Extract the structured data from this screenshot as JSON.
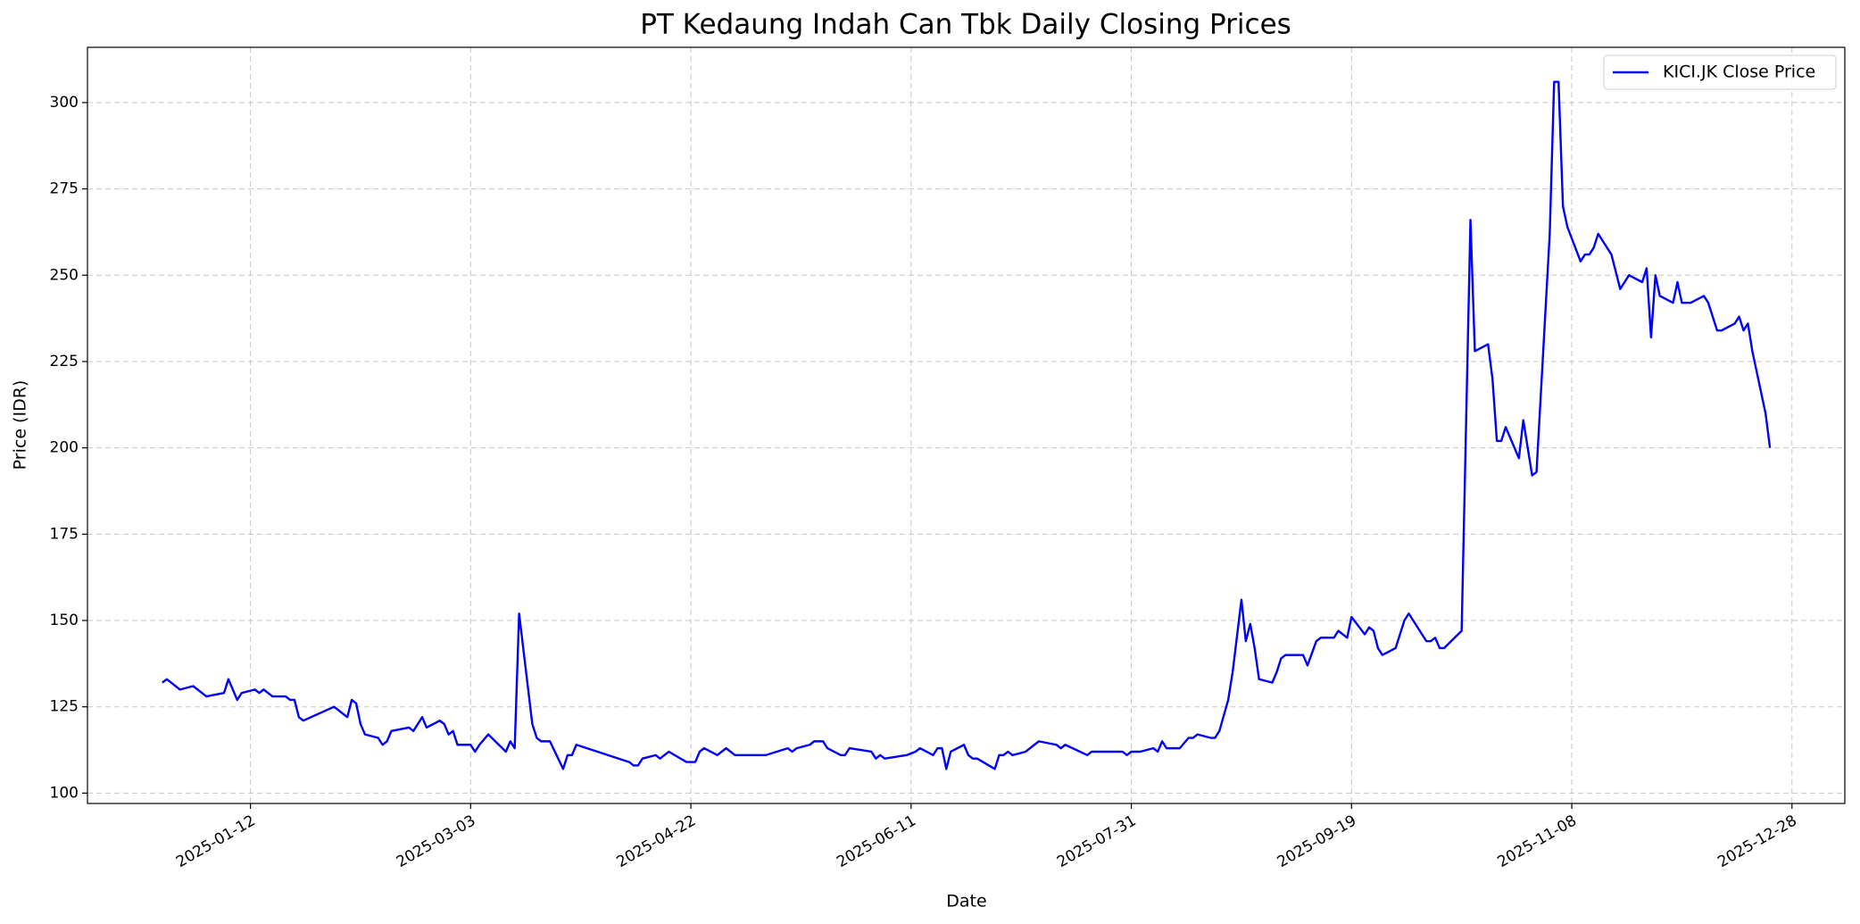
{
  "chart_data": {
    "type": "line",
    "title": "PT Kedaung Indah Can Tbk Daily Closing Prices",
    "x_label": "Date",
    "y_label": "Price (IDR)",
    "x": [
      "2024-12-23",
      "2024-12-24",
      "2024-12-27",
      "2024-12-30",
      "2025-01-02",
      "2025-01-06",
      "2025-01-07",
      "2025-01-09",
      "2025-01-10",
      "2025-01-13",
      "2025-01-14",
      "2025-01-15",
      "2025-01-17",
      "2025-01-20",
      "2025-01-21",
      "2025-01-22",
      "2025-01-23",
      "2025-01-24",
      "2025-01-31",
      "2025-02-03",
      "2025-02-04",
      "2025-02-05",
      "2025-02-06",
      "2025-02-07",
      "2025-02-10",
      "2025-02-11",
      "2025-02-12",
      "2025-02-13",
      "2025-02-17",
      "2025-02-18",
      "2025-02-20",
      "2025-02-21",
      "2025-02-24",
      "2025-02-25",
      "2025-02-26",
      "2025-02-27",
      "2025-02-28",
      "2025-03-03",
      "2025-03-04",
      "2025-03-05",
      "2025-03-07",
      "2025-03-11",
      "2025-03-12",
      "2025-03-13",
      "2025-03-14",
      "2025-03-17",
      "2025-03-18",
      "2025-03-19",
      "2025-03-21",
      "2025-03-24",
      "2025-03-25",
      "2025-03-26",
      "2025-03-27",
      "2025-04-08",
      "2025-04-09",
      "2025-04-10",
      "2025-04-11",
      "2025-04-14",
      "2025-04-15",
      "2025-04-17",
      "2025-04-21",
      "2025-04-23",
      "2025-04-24",
      "2025-04-25",
      "2025-04-28",
      "2025-04-30",
      "2025-05-02",
      "2025-05-09",
      "2025-05-14",
      "2025-05-15",
      "2025-05-16",
      "2025-05-19",
      "2025-05-20",
      "2025-05-22",
      "2025-05-23",
      "2025-05-26",
      "2025-05-27",
      "2025-05-28",
      "2025-06-02",
      "2025-06-03",
      "2025-06-04",
      "2025-06-05",
      "2025-06-10",
      "2025-06-12",
      "2025-06-13",
      "2025-06-16",
      "2025-06-17",
      "2025-06-18",
      "2025-06-19",
      "2025-06-20",
      "2025-06-23",
      "2025-06-24",
      "2025-06-25",
      "2025-06-26",
      "2025-06-30",
      "2025-07-01",
      "2025-07-02",
      "2025-07-03",
      "2025-07-04",
      "2025-07-07",
      "2025-07-10",
      "2025-07-14",
      "2025-07-15",
      "2025-07-16",
      "2025-07-21",
      "2025-07-22",
      "2025-07-29",
      "2025-07-30",
      "2025-07-31",
      "2025-08-02",
      "2025-08-05",
      "2025-08-06",
      "2025-08-07",
      "2025-08-08",
      "2025-08-11",
      "2025-08-13",
      "2025-08-14",
      "2025-08-15",
      "2025-08-18",
      "2025-08-19",
      "2025-08-20",
      "2025-08-22",
      "2025-08-23",
      "2025-08-25",
      "2025-08-26",
      "2025-08-27",
      "2025-08-28",
      "2025-08-29",
      "2025-09-01",
      "2025-09-02",
      "2025-09-03",
      "2025-09-04",
      "2025-09-08",
      "2025-09-09",
      "2025-09-11",
      "2025-09-12",
      "2025-09-15",
      "2025-09-16",
      "2025-09-18",
      "2025-09-19",
      "2025-09-22",
      "2025-09-23",
      "2025-09-24",
      "2025-09-25",
      "2025-09-26",
      "2025-09-29",
      "2025-09-30",
      "2025-10-01",
      "2025-10-02",
      "2025-10-06",
      "2025-10-07",
      "2025-10-08",
      "2025-10-09",
      "2025-10-10",
      "2025-10-14",
      "2025-10-16",
      "2025-10-17",
      "2025-10-20",
      "2025-10-21",
      "2025-10-22",
      "2025-10-23",
      "2025-10-24",
      "2025-10-27",
      "2025-10-28",
      "2025-10-30",
      "2025-10-31",
      "2025-11-03",
      "2025-11-04",
      "2025-11-05",
      "2025-11-06",
      "2025-11-07",
      "2025-11-10",
      "2025-11-11",
      "2025-11-12",
      "2025-11-13",
      "2025-11-14",
      "2025-11-17",
      "2025-11-19",
      "2025-11-21",
      "2025-11-24",
      "2025-11-25",
      "2025-11-26",
      "2025-11-27",
      "2025-11-28",
      "2025-12-01",
      "2025-12-02",
      "2025-12-03",
      "2025-12-05",
      "2025-12-08",
      "2025-12-09",
      "2025-12-11",
      "2025-12-12",
      "2025-12-15",
      "2025-12-16",
      "2025-12-17",
      "2025-12-18",
      "2025-12-19",
      "2025-12-22",
      "2025-12-23"
    ],
    "series": [
      {
        "name": "KICI.JK Close Price",
        "color": "#0000ff",
        "values": [
          132,
          133,
          130,
          131,
          128,
          129,
          133,
          127,
          129,
          130,
          129,
          130,
          128,
          128,
          127,
          127,
          122,
          121,
          125,
          122,
          127,
          126,
          120,
          117,
          116,
          114,
          115,
          118,
          119,
          118,
          122,
          119,
          121,
          120,
          117,
          118,
          114,
          114,
          112,
          114,
          117,
          112,
          115,
          113,
          152,
          120,
          116,
          115,
          115,
          107,
          111,
          111,
          114,
          109,
          108,
          108,
          110,
          111,
          110,
          112,
          109,
          109,
          112,
          113,
          111,
          113,
          111,
          111,
          113,
          112,
          113,
          114,
          115,
          115,
          113,
          111,
          111,
          113,
          112,
          110,
          111,
          110,
          111,
          112,
          113,
          111,
          113,
          113,
          107,
          112,
          114,
          111,
          110,
          110,
          107,
          111,
          111,
          112,
          111,
          112,
          115,
          114,
          113,
          114,
          111,
          112,
          112,
          111,
          112,
          112,
          113,
          112,
          115,
          113,
          113,
          116,
          116,
          117,
          116,
          116,
          118,
          127,
          135,
          156,
          144,
          149,
          142,
          133,
          132,
          135,
          139,
          140,
          140,
          137,
          144,
          145,
          145,
          147,
          145,
          151,
          146,
          148,
          147,
          142,
          140,
          142,
          146,
          150,
          152,
          144,
          144,
          145,
          142,
          142,
          147,
          266,
          228,
          230,
          220,
          202,
          202,
          206,
          197,
          208,
          192,
          193,
          262,
          306,
          306,
          270,
          264,
          254,
          256,
          256,
          258,
          262,
          256,
          246,
          250,
          248,
          252,
          232,
          250,
          244,
          242,
          248,
          242,
          242,
          244,
          242,
          234,
          234,
          236,
          238,
          234,
          236,
          228,
          210,
          200
        ]
      }
    ],
    "xlim": [
      "2024-12-06",
      "2026-01-09"
    ],
    "xticks": [
      "2025-01-12",
      "2025-03-03",
      "2025-04-22",
      "2025-06-11",
      "2025-07-31",
      "2025-09-19",
      "2025-11-08",
      "2025-12-28"
    ],
    "ylim": [
      97,
      316
    ],
    "yticks": [
      100,
      125,
      150,
      175,
      200,
      225,
      250,
      275,
      300
    ],
    "grid": true,
    "legend": "upper right"
  }
}
